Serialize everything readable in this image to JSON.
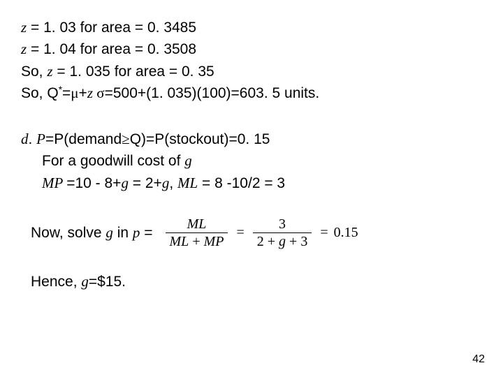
{
  "block1": {
    "line1": {
      "z": "z",
      "pre": " = 1. 03 for area = 0. 3485"
    },
    "line2": {
      "z": "z",
      "pre": " = 1. 04 for area = 0. 3508"
    },
    "line3": {
      "pre": "So, ",
      "z": "z",
      "post": " = 1. 035 for area = 0. 35"
    },
    "line4": {
      "pre": "So, Q",
      "sup": "*",
      "eq1": "=",
      "mu": "μ",
      "plus": "+",
      "z": "z ",
      "sigma": "σ",
      "post": "=500+(1. 035)(100)=603. 5 units."
    }
  },
  "block2": {
    "line1": {
      "d": "d",
      "pre": ". ",
      "P": "P",
      "mid1": "=P(demand",
      "ge": "≥",
      "mid2": "Q)=P(stockout)=0. 15"
    },
    "line2": {
      "pre": "For a goodwill cost of ",
      "g": "g"
    },
    "line3": {
      "MP": "MP ",
      "mid": "=10 - 8+",
      "g": "g",
      "mid2": " = 2+",
      "g2": "g",
      "comma": ", ",
      "ML": "ML",
      "post": " = 8 -10/2 = 3"
    }
  },
  "eq": {
    "label_pre": "Now, solve ",
    "g": "g",
    "label_mid": " in ",
    "p": "p",
    "label_post": "   =",
    "frac1_num": "ML",
    "frac1_den_a": "ML",
    "frac1_den_plus": " + ",
    "frac1_den_b": "MP",
    "eq1": "=",
    "frac2_num": "3",
    "frac2_den_a": "2 + ",
    "frac2_den_g": "g",
    "frac2_den_b": " + 3",
    "eq2": "=",
    "rhs": "0.15"
  },
  "hence": {
    "pre": "Hence, ",
    "g": "g",
    "post": "=$15."
  },
  "pagenum": "42"
}
